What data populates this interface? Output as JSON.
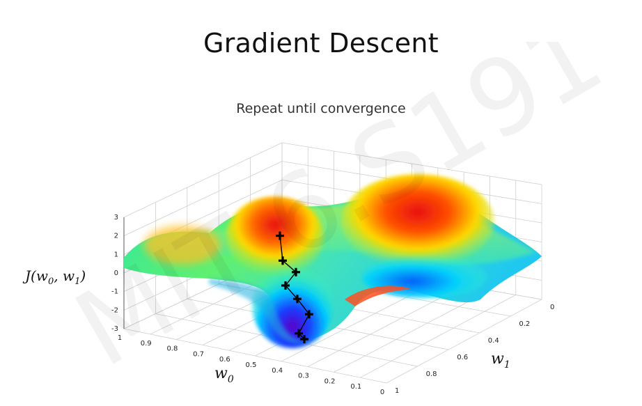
{
  "slide": {
    "title": "Gradient Descent",
    "subtitle": "Repeat until convergence",
    "watermark": "MIT 6.S191"
  },
  "chart_data": {
    "type": "surface-3d",
    "title": "",
    "xlabel": "w_0",
    "xlabel_sub": "0",
    "ylabel": "w_1",
    "ylabel_sub": "1",
    "zlabel": "J(w_0, w_1)",
    "x_ticks": [
      "1",
      "0.9",
      "0.8",
      "0.7",
      "0.6",
      "0.5",
      "0.4",
      "0.3",
      "0.2",
      "0.1",
      "0"
    ],
    "y_ticks": [
      "0",
      "0.2",
      "0.4",
      "0.6",
      "0.8",
      "1"
    ],
    "z_ticks": [
      "3",
      "2",
      "1",
      "0",
      "-1",
      "-2",
      "-3"
    ],
    "xlim": [
      0,
      1
    ],
    "ylim": [
      0,
      1
    ],
    "zlim": [
      -3,
      3
    ],
    "colormap": "jet",
    "grid": true,
    "descent_path": [
      {
        "step": 1,
        "z": 2.4
      },
      {
        "step": 2,
        "z": 1.1
      },
      {
        "step": 3,
        "z": 0.5
      },
      {
        "step": 4,
        "z": -0.2
      },
      {
        "step": 5,
        "z": -0.9
      },
      {
        "step": 6,
        "z": -1.7
      },
      {
        "step": 7,
        "z": -2.7
      },
      {
        "step": 8,
        "z": -3.0
      }
    ],
    "marker": "plus",
    "marker_color": "#000000"
  }
}
